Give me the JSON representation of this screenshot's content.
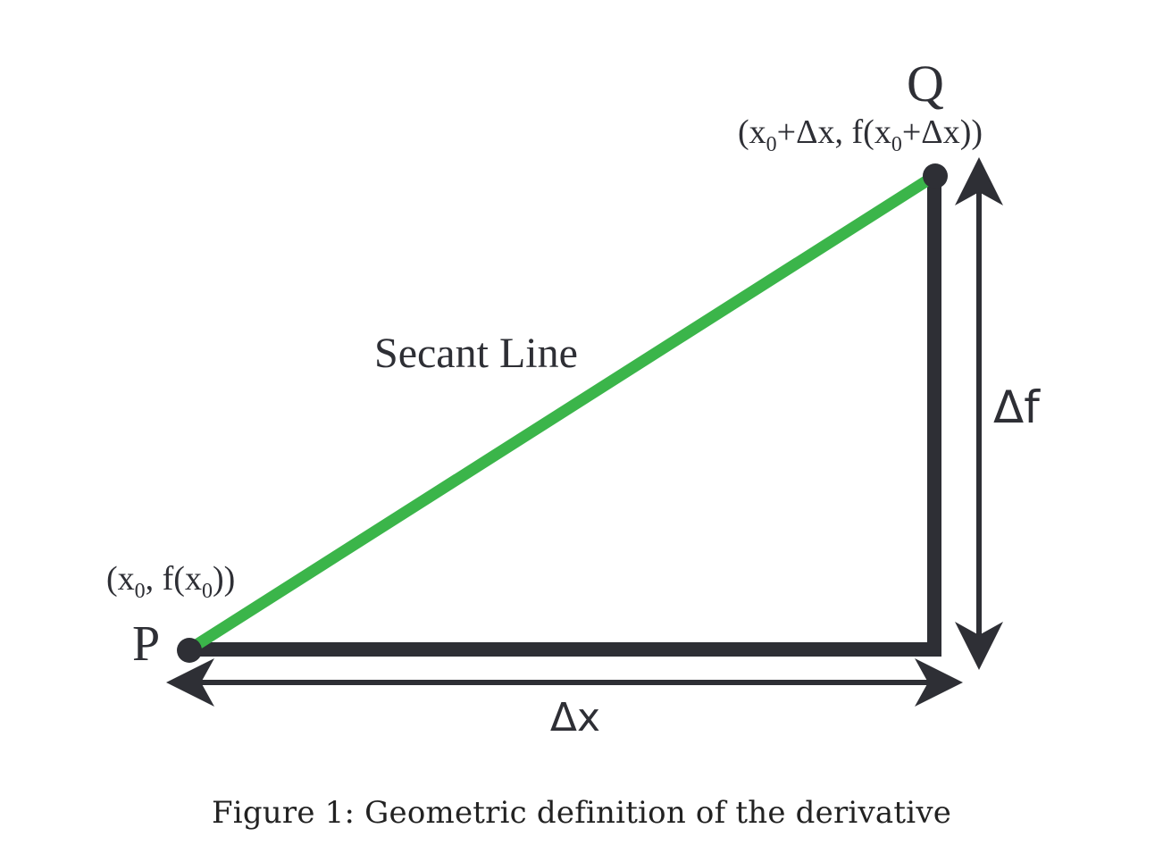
{
  "diagram": {
    "point_p": {
      "label": "P",
      "coord_parts": {
        "open": "(x",
        "sub1": "0",
        "mid": ", f(x",
        "sub2": "0",
        "close": "))"
      }
    },
    "point_q": {
      "label": "Q",
      "coord_parts": {
        "open": "(x",
        "sub1": "0",
        "mid": "+Δx, f(x",
        "sub2": "0",
        "close": "+Δx))"
      }
    },
    "secant_label": "Secant Line",
    "delta_x_label": "Δx",
    "delta_f_label": "Δf",
    "colors": {
      "secant": "#3bb54a",
      "stroke": "#2e2f35",
      "caption_text": "#222222"
    }
  },
  "caption": "Figure 1: Geometric definition of the derivative"
}
